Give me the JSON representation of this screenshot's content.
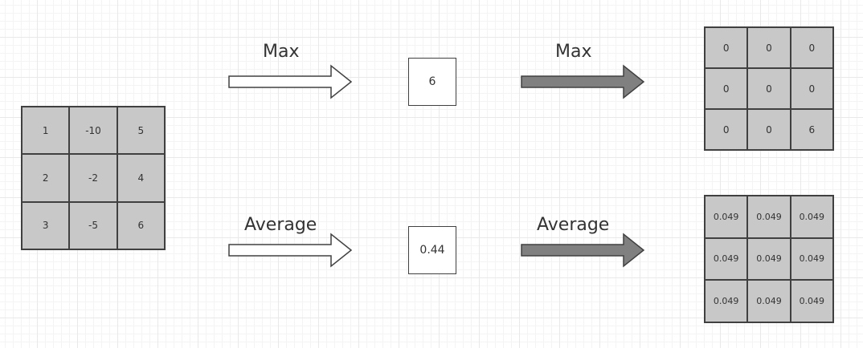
{
  "input_matrix": [
    [
      "1",
      "-10",
      "5"
    ],
    [
      "2",
      "-2",
      "4"
    ],
    [
      "3",
      "-5",
      "6"
    ]
  ],
  "operations": {
    "max": {
      "label": "Max",
      "result": "6",
      "output_matrix": [
        [
          "0",
          "0",
          "0"
        ],
        [
          "0",
          "0",
          "0"
        ],
        [
          "0",
          "0",
          "6"
        ]
      ]
    },
    "average": {
      "label": "Average",
      "result": "0.44",
      "output_matrix": [
        [
          "0.049",
          "0.049",
          "0.049"
        ],
        [
          "0.049",
          "0.049",
          "0.049"
        ],
        [
          "0.049",
          "0.049",
          "0.049"
        ]
      ]
    }
  },
  "colors": {
    "cell_fill": "#c8c8c8",
    "outline": "#404040",
    "forward_arrow_fill": "#ffffff",
    "backward_arrow_fill": "#808080"
  }
}
